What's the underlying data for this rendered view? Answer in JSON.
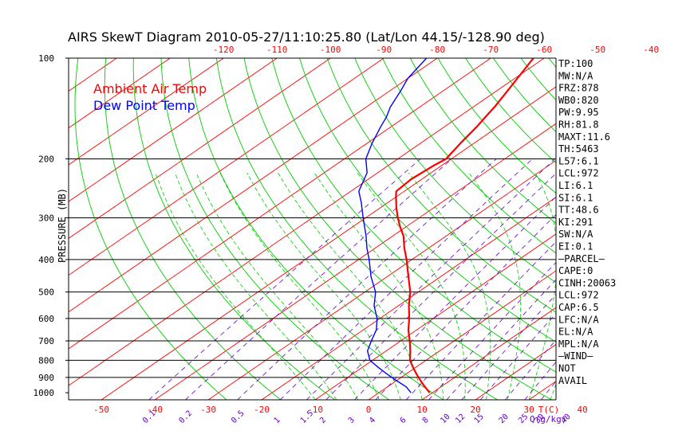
{
  "chart_data": {
    "type": "line",
    "title": "AIRS SkewT Diagram 2010-05-27/11:10:25.80 (Lat/Lon 44.15/-128.90 deg)",
    "ylabel": "PRESSURE (MB)",
    "y_scale": "log",
    "ylim": [
      1050,
      100
    ],
    "pressure_ticks": [
      100,
      200,
      300,
      400,
      500,
      600,
      700,
      800,
      900,
      1000
    ],
    "isobar_lines": [
      200,
      300,
      400,
      500,
      600,
      700,
      800,
      900
    ],
    "top_temperature_ticks": [
      -120,
      -110,
      -100,
      -90,
      -80,
      -70,
      -60,
      -50,
      -40
    ],
    "bottom_temperature_ticks": [
      -50,
      -40,
      -30,
      -20,
      -10,
      0,
      10,
      20,
      30,
      40
    ],
    "temperature_axis_label": "T(C)",
    "mixing_ratio_ticks": [
      "0.1",
      "0.2",
      "0.5",
      "1",
      "1.5",
      "2",
      "3",
      "4",
      "6",
      "8",
      "10",
      "12",
      "15",
      "20",
      "25",
      "30",
      "40"
    ],
    "mixing_ratio_values": [
      0.1,
      0.2,
      0.5,
      1,
      1.5,
      2,
      3,
      4,
      6,
      8,
      10,
      12,
      15,
      20,
      25,
      30,
      40
    ],
    "mixing_ratio_label": "Q(g/kg)",
    "legend": {
      "placement": "top-left",
      "entries": [
        "Ambient Air Temp",
        "Dew Point Temp"
      ]
    },
    "series": [
      {
        "name": "Ambient Air Temp",
        "color": "#ff0000",
        "points": [
          {
            "p": 1000,
            "t": 9.5
          },
          {
            "p": 960,
            "t": 7.0
          },
          {
            "p": 920,
            "t": 4.5
          },
          {
            "p": 880,
            "t": 2.0
          },
          {
            "p": 840,
            "t": -0.5
          },
          {
            "p": 800,
            "t": -3.0
          },
          {
            "p": 750,
            "t": -5.5
          },
          {
            "p": 700,
            "t": -8.3
          },
          {
            "p": 650,
            "t": -11.5
          },
          {
            "p": 600,
            "t": -14.5
          },
          {
            "p": 550,
            "t": -18.0
          },
          {
            "p": 500,
            "t": -21.5
          },
          {
            "p": 450,
            "t": -26.0
          },
          {
            "p": 400,
            "t": -31.0
          },
          {
            "p": 370,
            "t": -34.5
          },
          {
            "p": 340,
            "t": -38.0
          },
          {
            "p": 320,
            "t": -41.0
          },
          {
            "p": 300,
            "t": -44.0
          },
          {
            "p": 280,
            "t": -47.0
          },
          {
            "p": 260,
            "t": -50.0
          },
          {
            "p": 250,
            "t": -51.5
          },
          {
            "p": 230,
            "t": -52.0
          },
          {
            "p": 210,
            "t": -51.5
          },
          {
            "p": 200,
            "t": -51.0
          },
          {
            "p": 180,
            "t": -52.5
          },
          {
            "p": 160,
            "t": -54.0
          },
          {
            "p": 150,
            "t": -55.0
          },
          {
            "p": 140,
            "t": -56.0
          },
          {
            "p": 125,
            "t": -58.0
          },
          {
            "p": 115,
            "t": -59.5
          },
          {
            "p": 100,
            "t": -62.0
          }
        ]
      },
      {
        "name": "Dew Point Temp",
        "color": "#0000ff",
        "points": [
          {
            "p": 1000,
            "t": 6.0
          },
          {
            "p": 960,
            "t": 3.5
          },
          {
            "p": 920,
            "t": 0.0
          },
          {
            "p": 880,
            "t": -3.5
          },
          {
            "p": 840,
            "t": -7.0
          },
          {
            "p": 800,
            "t": -10.5
          },
          {
            "p": 750,
            "t": -13.5
          },
          {
            "p": 700,
            "t": -15.5
          },
          {
            "p": 650,
            "t": -17.5
          },
          {
            "p": 600,
            "t": -20.5
          },
          {
            "p": 550,
            "t": -24.5
          },
          {
            "p": 500,
            "t": -28.0
          },
          {
            "p": 450,
            "t": -33.0
          },
          {
            "p": 400,
            "t": -38.0
          },
          {
            "p": 370,
            "t": -41.5
          },
          {
            "p": 340,
            "t": -45.0
          },
          {
            "p": 300,
            "t": -50.5
          },
          {
            "p": 270,
            "t": -55.0
          },
          {
            "p": 250,
            "t": -58.5
          },
          {
            "p": 220,
            "t": -62.0
          },
          {
            "p": 200,
            "t": -66.0
          },
          {
            "p": 180,
            "t": -69.0
          },
          {
            "p": 160,
            "t": -72.0
          },
          {
            "p": 150,
            "t": -73.5
          },
          {
            "p": 140,
            "t": -75.5
          },
          {
            "p": 125,
            "t": -78.0
          },
          {
            "p": 115,
            "t": -80.0
          },
          {
            "p": 100,
            "t": -82.0
          }
        ]
      }
    ],
    "indices": [
      "TP:100",
      "MW:N/A",
      "FRZ:878",
      "WB0:820",
      "PW:9.95",
      "RH:81.8",
      "MAXT:11.6",
      "TH:5463",
      "L57:6.1",
      "LCL:972",
      "LI:6.1",
      "SI:6.1",
      "TT:48.6",
      "KI:291",
      "SW:N/A",
      "EI:0.1",
      "—PARCEL—",
      "CAPE:0",
      "CINH:20063",
      "LCL:972",
      "CAP:6.5",
      "LFC:N/A",
      "EL:N/A",
      "MPL:N/A",
      "—WIND—",
      "NOT",
      "AVAIL"
    ],
    "colors": {
      "isotherm": "#ff0000",
      "dry_adiabat": "#00cc00",
      "moist_adiabat": "#00cc00",
      "mixing_ratio": "#6600cc",
      "isobar": "#000000",
      "axis_text": "#000000",
      "temperature_tick_text": "#ff0000",
      "mixing_ratio_text": "#6600cc"
    },
    "grid": true
  }
}
